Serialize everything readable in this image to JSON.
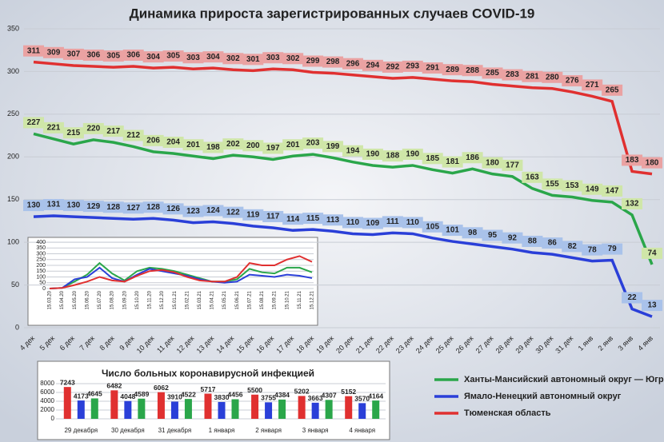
{
  "chart_data": [
    {
      "type": "line",
      "title": "Динамика прироста зарегистрированных случаев COVID-19",
      "categories": [
        "4 дек",
        "5 дек",
        "6 дек",
        "7 дек",
        "8 дек",
        "9 дек",
        "10 дек",
        "11 дек",
        "12 дек",
        "13 дек",
        "14 дек",
        "15 дек",
        "16 дек",
        "17 дек",
        "18 дек",
        "19 дек",
        "20 дек",
        "21 дек",
        "22 дек",
        "23 дек",
        "24 дек",
        "25 дек",
        "26 дек",
        "27 дек",
        "28 дек",
        "29 дек",
        "30 дек",
        "31 дек",
        "1 янв",
        "2 янв",
        "3 янв",
        "4 янв"
      ],
      "series": [
        {
          "name": "Ханты-Мансийский автономный округ — Югра",
          "color": "#2aa64a",
          "label_color": "#cfe6a8",
          "values": [
            227,
            221,
            215,
            220,
            217,
            212,
            206,
            204,
            201,
            198,
            202,
            200,
            197,
            201,
            203,
            199,
            194,
            190,
            188,
            190,
            185,
            181,
            186,
            180,
            177,
            163,
            155,
            153,
            149,
            147,
            132,
            74
          ]
        },
        {
          "name": "Ямало-Ненецкий автономный округ",
          "color": "#2a3fd8",
          "label_color": "#a9c2ea",
          "values": [
            130,
            131,
            130,
            129,
            128,
            127,
            128,
            126,
            123,
            124,
            122,
            119,
            117,
            114,
            115,
            113,
            110,
            109,
            111,
            110,
            105,
            101,
            98,
            95,
            92,
            88,
            86,
            82,
            78,
            79,
            22,
            13
          ]
        },
        {
          "name": "Тюменская область",
          "color": "#e03030",
          "label_color": "#eaa2a2",
          "values": [
            311,
            309,
            307,
            306,
            305,
            306,
            304,
            305,
            303,
            304,
            302,
            301,
            303,
            302,
            299,
            298,
            296,
            294,
            292,
            293,
            291,
            289,
            288,
            285,
            283,
            281,
            280,
            276,
            271,
            265,
            183,
            180
          ]
        }
      ],
      "ylim": [
        0,
        350
      ],
      "yticks": [
        0,
        50,
        100,
        150,
        200,
        250,
        300,
        350
      ],
      "grid": true
    },
    {
      "type": "line",
      "categories": [
        "15.03.20",
        "15.04.20",
        "15.05.20",
        "15.06.20",
        "15.07.20",
        "15.08.20",
        "15.09.20",
        "15.10.20",
        "15.11.20",
        "15.12.20",
        "15.01.21",
        "15.02.21",
        "15.03.21",
        "15.04.21",
        "15.05.21",
        "15.06.21",
        "15.07.21",
        "15.08.21",
        "15.09.21",
        "15.10.21",
        "15.11.21",
        "15.12.21"
      ],
      "series": [
        {
          "color": "#2aa64a",
          "values": [
            0,
            5,
            60,
            120,
            220,
            130,
            70,
            150,
            180,
            170,
            150,
            120,
            90,
            60,
            60,
            80,
            170,
            140,
            130,
            180,
            180,
            140
          ]
        },
        {
          "color": "#2a3fd8",
          "values": [
            0,
            5,
            80,
            100,
            180,
            90,
            60,
            120,
            170,
            150,
            130,
            110,
            80,
            60,
            50,
            60,
            120,
            110,
            100,
            120,
            110,
            90
          ]
        },
        {
          "color": "#e03030",
          "values": [
            0,
            5,
            30,
            60,
            100,
            70,
            60,
            110,
            150,
            160,
            140,
            100,
            70,
            60,
            60,
            100,
            220,
            200,
            200,
            250,
            280,
            230
          ]
        }
      ],
      "ylim": [
        0,
        400
      ],
      "yticks": [
        0,
        50,
        100,
        150,
        200,
        250,
        300,
        350,
        400
      ],
      "grid": true
    },
    {
      "type": "bar",
      "title": "Число больных коронавирусной инфекцией",
      "categories": [
        "29 декабря",
        "30 декабря",
        "31 декабря",
        "1 января",
        "2 января",
        "3 января",
        "4 января"
      ],
      "series": [
        {
          "color": "#e03030",
          "values": [
            7243,
            6482,
            6062,
            5717,
            5500,
            5202,
            5152
          ]
        },
        {
          "color": "#2a3fd8",
          "values": [
            4173,
            4048,
            3910,
            3830,
            3755,
            3663,
            3570
          ]
        },
        {
          "color": "#2aa64a",
          "values": [
            4645,
            4589,
            4522,
            4456,
            4384,
            4307,
            4164
          ]
        }
      ],
      "ylim": [
        0,
        8000
      ],
      "yticks": [
        0,
        2000,
        4000,
        6000,
        8000
      ],
      "grid": true
    }
  ]
}
